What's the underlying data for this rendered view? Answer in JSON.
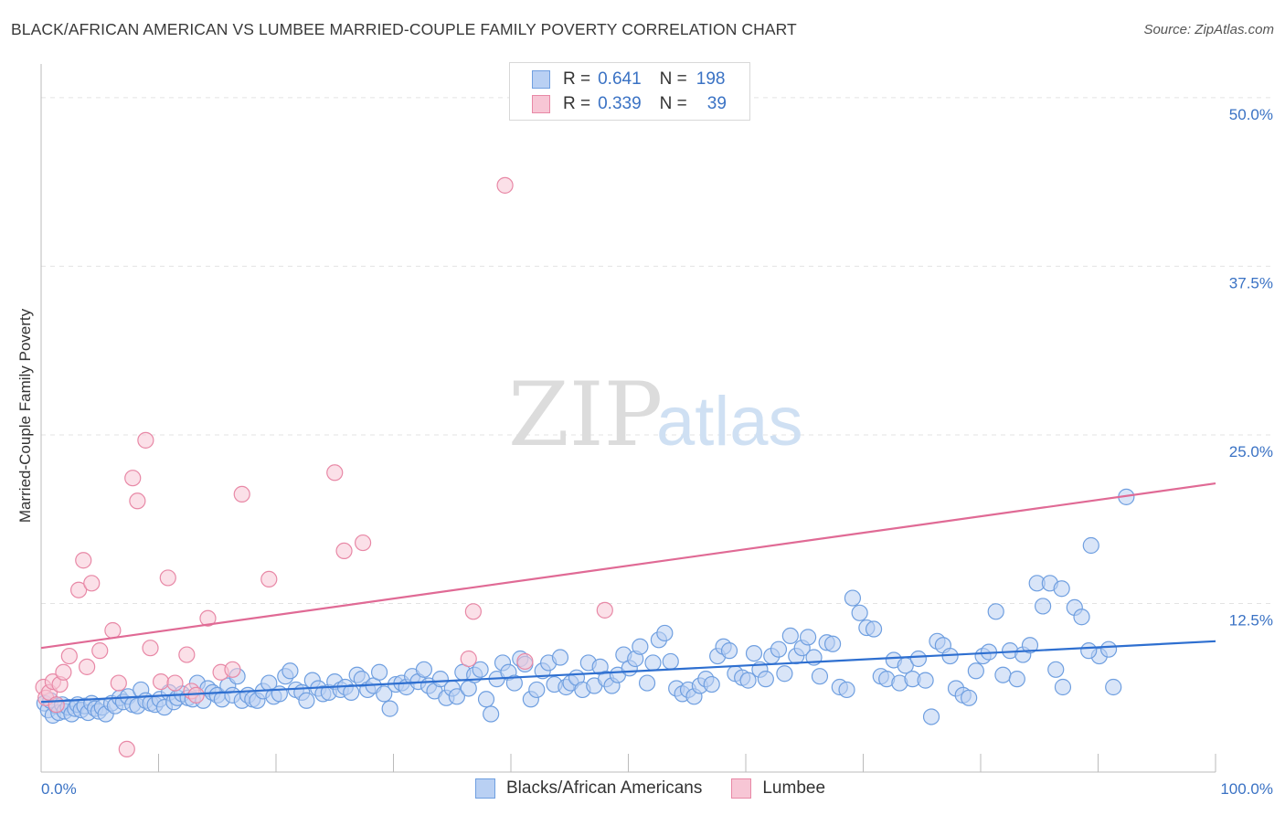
{
  "header": {
    "title": "BLACK/AFRICAN AMERICAN VS LUMBEE MARRIED-COUPLE FAMILY POVERTY CORRELATION CHART",
    "source": "Source: ZipAtlas.com"
  },
  "watermark": {
    "zip": "ZIP",
    "atlas": "atlas"
  },
  "legend": [
    {
      "r_label": "R =",
      "r_value": "0.641",
      "n_label": "N =",
      "n_value": "198",
      "color": "#6f9fe0",
      "fill": "#b9d0f3"
    },
    {
      "r_label": "R =",
      "r_value": "0.339",
      "n_label": "N =",
      "n_value": "39",
      "color": "#e888a6",
      "fill": "#f7c6d5"
    }
  ],
  "bottom_legend": [
    "Blacks/African Americans",
    "Lumbee"
  ],
  "chart_data": {
    "type": "scatter",
    "title": "BLACK/AFRICAN AMERICAN VS LUMBEE MARRIED-COUPLE FAMILY POVERTY CORRELATION CHART",
    "xlabel": "",
    "ylabel": "Married-Couple Family Poverty",
    "xlim": [
      0,
      100
    ],
    "ylim": [
      0,
      52.5
    ],
    "x_tick_labels": [
      "0.0%",
      "100.0%"
    ],
    "y_ticks": [
      12.5,
      25.0,
      37.5,
      50.0
    ],
    "y_tick_labels": [
      "12.5%",
      "25.0%",
      "37.5%",
      "50.0%"
    ],
    "grid": true,
    "series": [
      {
        "name": "Blacks/African Americans",
        "color": "#6f9fe0",
        "fill": "#b9d0f3",
        "trend": [
          [
            0,
            5.2
          ],
          [
            100,
            9.7
          ]
        ],
        "points": [
          [
            0.3,
            5.1
          ],
          [
            0.6,
            4.6
          ],
          [
            0.8,
            5.3
          ],
          [
            1.0,
            4.2
          ],
          [
            1.3,
            4.9
          ],
          [
            1.5,
            4.4
          ],
          [
            1.8,
            5.0
          ],
          [
            2.0,
            4.5
          ],
          [
            2.3,
            4.8
          ],
          [
            2.6,
            4.3
          ],
          [
            2.9,
            4.7
          ],
          [
            3.1,
            5.0
          ],
          [
            3.4,
            4.6
          ],
          [
            3.7,
            4.9
          ],
          [
            4.0,
            4.4
          ],
          [
            4.3,
            5.1
          ],
          [
            4.6,
            4.7
          ],
          [
            4.9,
            4.5
          ],
          [
            5.2,
            4.8
          ],
          [
            5.5,
            4.3
          ],
          [
            6.0,
            5.1
          ],
          [
            6.3,
            4.9
          ],
          [
            6.7,
            5.5
          ],
          [
            7.0,
            5.2
          ],
          [
            7.4,
            5.6
          ],
          [
            7.8,
            5.0
          ],
          [
            8.2,
            4.9
          ],
          [
            8.5,
            6.1
          ],
          [
            8.9,
            5.3
          ],
          [
            9.3,
            5.1
          ],
          [
            9.7,
            5.0
          ],
          [
            10.1,
            5.4
          ],
          [
            10.5,
            4.8
          ],
          [
            10.9,
            5.9
          ],
          [
            11.3,
            5.2
          ],
          [
            11.6,
            5.5
          ],
          [
            12.0,
            5.8
          ],
          [
            12.5,
            5.5
          ],
          [
            12.9,
            5.4
          ],
          [
            13.3,
            6.6
          ],
          [
            13.8,
            5.3
          ],
          [
            14.2,
            6.2
          ],
          [
            14.6,
            5.9
          ],
          [
            15.0,
            5.7
          ],
          [
            15.4,
            5.4
          ],
          [
            15.9,
            6.4
          ],
          [
            16.3,
            5.7
          ],
          [
            16.7,
            7.1
          ],
          [
            17.1,
            5.3
          ],
          [
            17.6,
            5.7
          ],
          [
            18.0,
            5.4
          ],
          [
            18.4,
            5.3
          ],
          [
            18.9,
            6.0
          ],
          [
            19.4,
            6.6
          ],
          [
            19.8,
            5.6
          ],
          [
            20.3,
            5.8
          ],
          [
            20.8,
            7.1
          ],
          [
            21.2,
            7.5
          ],
          [
            21.7,
            6.1
          ],
          [
            22.2,
            5.9
          ],
          [
            22.6,
            5.3
          ],
          [
            23.1,
            6.8
          ],
          [
            23.6,
            6.2
          ],
          [
            24.0,
            5.8
          ],
          [
            24.5,
            5.9
          ],
          [
            25.0,
            6.7
          ],
          [
            25.5,
            6.1
          ],
          [
            25.9,
            6.3
          ],
          [
            26.4,
            5.9
          ],
          [
            26.9,
            7.2
          ],
          [
            27.3,
            6.9
          ],
          [
            27.8,
            6.1
          ],
          [
            28.3,
            6.4
          ],
          [
            28.8,
            7.4
          ],
          [
            29.2,
            5.8
          ],
          [
            29.7,
            4.7
          ],
          [
            30.2,
            6.5
          ],
          [
            30.7,
            6.6
          ],
          [
            31.1,
            6.3
          ],
          [
            31.6,
            7.1
          ],
          [
            32.1,
            6.7
          ],
          [
            32.6,
            7.6
          ],
          [
            33.0,
            6.4
          ],
          [
            33.5,
            6.0
          ],
          [
            34.0,
            6.9
          ],
          [
            34.5,
            5.5
          ],
          [
            35.0,
            6.2
          ],
          [
            35.4,
            5.6
          ],
          [
            35.9,
            7.4
          ],
          [
            36.4,
            6.2
          ],
          [
            36.9,
            7.2
          ],
          [
            37.4,
            7.6
          ],
          [
            37.9,
            5.4
          ],
          [
            38.3,
            4.3
          ],
          [
            38.8,
            6.9
          ],
          [
            39.3,
            8.1
          ],
          [
            39.8,
            7.4
          ],
          [
            40.3,
            6.6
          ],
          [
            40.8,
            8.4
          ],
          [
            41.2,
            8.0
          ],
          [
            41.7,
            5.4
          ],
          [
            42.2,
            6.1
          ],
          [
            42.7,
            7.5
          ],
          [
            43.2,
            8.1
          ],
          [
            43.7,
            6.5
          ],
          [
            44.2,
            8.5
          ],
          [
            44.7,
            6.3
          ],
          [
            45.1,
            6.6
          ],
          [
            45.6,
            7.0
          ],
          [
            46.1,
            6.1
          ],
          [
            46.6,
            8.1
          ],
          [
            47.1,
            6.4
          ],
          [
            47.6,
            7.8
          ],
          [
            48.1,
            6.9
          ],
          [
            48.6,
            6.4
          ],
          [
            49.1,
            7.2
          ],
          [
            49.6,
            8.7
          ],
          [
            50.1,
            7.7
          ],
          [
            50.6,
            8.4
          ],
          [
            51.0,
            9.3
          ],
          [
            51.6,
            6.6
          ],
          [
            52.1,
            8.1
          ],
          [
            52.6,
            9.8
          ],
          [
            53.1,
            10.3
          ],
          [
            53.6,
            8.2
          ],
          [
            54.1,
            6.2
          ],
          [
            54.6,
            5.8
          ],
          [
            55.1,
            6.1
          ],
          [
            55.6,
            5.6
          ],
          [
            56.1,
            6.4
          ],
          [
            56.6,
            6.9
          ],
          [
            57.1,
            6.5
          ],
          [
            57.6,
            8.6
          ],
          [
            58.1,
            9.3
          ],
          [
            58.6,
            9.0
          ],
          [
            59.1,
            7.3
          ],
          [
            59.7,
            7.0
          ],
          [
            60.2,
            6.8
          ],
          [
            60.7,
            8.8
          ],
          [
            61.2,
            7.6
          ],
          [
            61.7,
            6.9
          ],
          [
            62.2,
            8.6
          ],
          [
            62.8,
            9.1
          ],
          [
            63.3,
            7.3
          ],
          [
            63.8,
            10.1
          ],
          [
            64.3,
            8.6
          ],
          [
            64.8,
            9.2
          ],
          [
            65.3,
            10.0
          ],
          [
            65.8,
            8.5
          ],
          [
            66.3,
            7.1
          ],
          [
            66.9,
            9.6
          ],
          [
            67.4,
            9.5
          ],
          [
            68.0,
            6.3
          ],
          [
            68.6,
            6.1
          ],
          [
            69.1,
            12.9
          ],
          [
            69.7,
            11.8
          ],
          [
            70.3,
            10.7
          ],
          [
            70.9,
            10.6
          ],
          [
            71.5,
            7.1
          ],
          [
            72.0,
            6.9
          ],
          [
            72.6,
            8.3
          ],
          [
            73.1,
            6.6
          ],
          [
            73.6,
            7.9
          ],
          [
            74.2,
            6.9
          ],
          [
            74.7,
            8.4
          ],
          [
            75.3,
            6.8
          ],
          [
            75.8,
            4.1
          ],
          [
            76.3,
            9.7
          ],
          [
            76.8,
            9.4
          ],
          [
            77.4,
            8.6
          ],
          [
            77.9,
            6.2
          ],
          [
            78.5,
            5.7
          ],
          [
            79.0,
            5.5
          ],
          [
            79.6,
            7.5
          ],
          [
            80.2,
            8.6
          ],
          [
            80.7,
            8.9
          ],
          [
            81.3,
            11.9
          ],
          [
            81.9,
            7.2
          ],
          [
            82.5,
            9.0
          ],
          [
            83.1,
            6.9
          ],
          [
            83.6,
            8.7
          ],
          [
            84.2,
            9.4
          ],
          [
            84.8,
            14.0
          ],
          [
            85.3,
            12.3
          ],
          [
            85.9,
            14.0
          ],
          [
            86.4,
            7.6
          ],
          [
            87.0,
            6.3
          ],
          [
            88.0,
            12.2
          ],
          [
            89.4,
            16.8
          ],
          [
            90.1,
            8.6
          ],
          [
            91.3,
            6.3
          ],
          [
            92.4,
            20.4
          ],
          [
            89.2,
            9.0
          ],
          [
            86.9,
            13.6
          ],
          [
            88.6,
            11.5
          ],
          [
            90.9,
            9.1
          ]
        ]
      },
      {
        "name": "Lumbee",
        "color": "#e888a6",
        "fill": "#f7c6d5",
        "trend": [
          [
            0,
            9.2
          ],
          [
            100,
            21.4
          ]
        ],
        "points": [
          [
            0.2,
            6.3
          ],
          [
            0.4,
            5.5
          ],
          [
            0.7,
            5.9
          ],
          [
            1.0,
            6.7
          ],
          [
            1.3,
            5.0
          ],
          [
            1.6,
            6.5
          ],
          [
            1.9,
            7.4
          ],
          [
            2.4,
            8.6
          ],
          [
            3.2,
            13.5
          ],
          [
            3.6,
            15.7
          ],
          [
            3.9,
            7.8
          ],
          [
            4.3,
            14.0
          ],
          [
            5.0,
            9.0
          ],
          [
            6.1,
            10.5
          ],
          [
            6.6,
            6.6
          ],
          [
            7.3,
            1.7
          ],
          [
            7.8,
            21.8
          ],
          [
            8.2,
            20.1
          ],
          [
            8.9,
            24.6
          ],
          [
            9.3,
            9.2
          ],
          [
            10.2,
            6.7
          ],
          [
            10.8,
            14.4
          ],
          [
            11.4,
            6.6
          ],
          [
            12.4,
            8.7
          ],
          [
            12.8,
            6.0
          ],
          [
            13.2,
            5.7
          ],
          [
            14.2,
            11.4
          ],
          [
            15.3,
            7.4
          ],
          [
            16.3,
            7.6
          ],
          [
            17.1,
            20.6
          ],
          [
            19.4,
            14.3
          ],
          [
            25.0,
            22.2
          ],
          [
            25.8,
            16.4
          ],
          [
            27.4,
            17.0
          ],
          [
            36.4,
            8.4
          ],
          [
            36.8,
            11.9
          ],
          [
            39.5,
            43.5
          ],
          [
            41.2,
            8.2
          ],
          [
            48.0,
            12.0
          ]
        ]
      }
    ]
  }
}
